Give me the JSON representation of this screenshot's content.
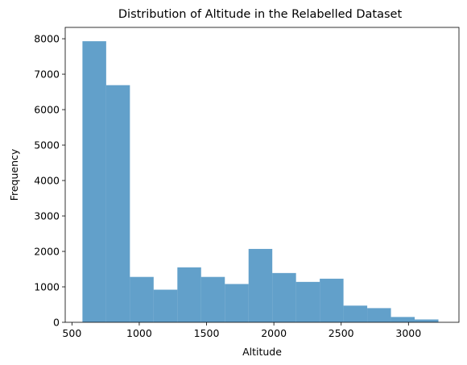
{
  "chart_data": {
    "type": "bar",
    "subtype": "histogram",
    "title": "Distribution of Altitude in the Relabelled Dataset",
    "xlabel": "Altitude",
    "ylabel": "Frequency",
    "xlim": [
      450,
      3375
    ],
    "ylim": [
      0,
      8320
    ],
    "grid": false,
    "legend": "none",
    "bar_color": "#1f77b4",
    "bar_opacity": 0.7,
    "bin_edges": [
      578,
      754.3,
      930.6,
      1106.9,
      1283.2,
      1459.5,
      1635.8,
      1812.1,
      1988.4,
      2164.7,
      2341,
      2517.3,
      2693.6,
      2869.9,
      3046.2,
      3222.5
    ],
    "values": [
      7930,
      6690,
      1280,
      920,
      1550,
      1280,
      1080,
      2070,
      1390,
      1140,
      1230,
      470,
      400,
      150,
      80
    ],
    "xticks": [
      500,
      1000,
      1500,
      2000,
      2500,
      3000
    ],
    "xtick_labels": [
      "500",
      "1000",
      "1500",
      "2000",
      "2500",
      "3000"
    ],
    "yticks": [
      0,
      1000,
      2000,
      3000,
      4000,
      5000,
      6000,
      7000,
      8000
    ],
    "ytick_labels": [
      "0",
      "1000",
      "2000",
      "3000",
      "4000",
      "5000",
      "6000",
      "7000",
      "8000"
    ]
  }
}
